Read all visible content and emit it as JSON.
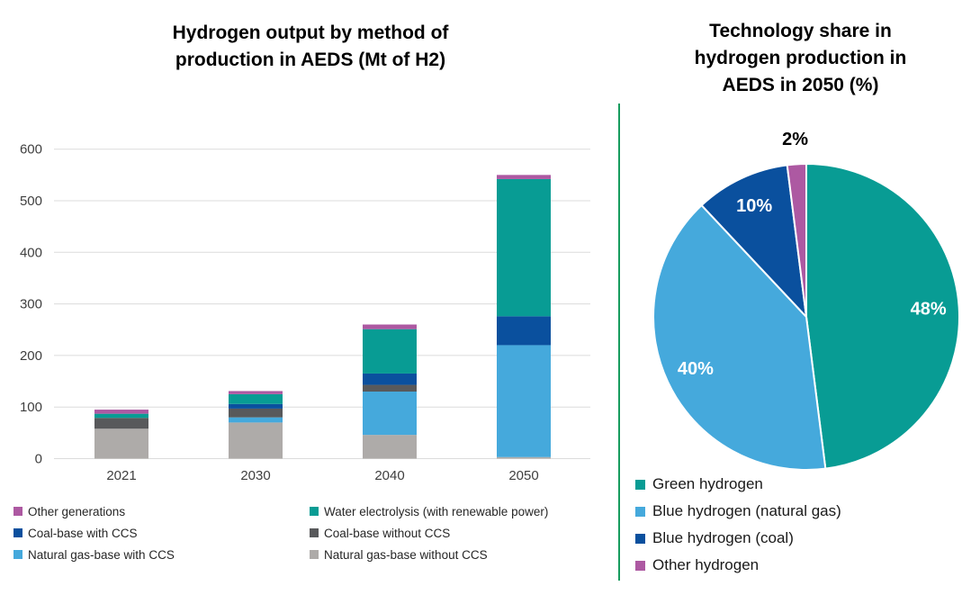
{
  "left_panel": {
    "title_lines": [
      "Hydrogen output by method of",
      "production in AEDS (Mt of H2)"
    ]
  },
  "right_panel": {
    "title_lines": [
      "Technology share in",
      "hydrogen production in",
      "AEDS in 2050 (%)"
    ]
  },
  "colors": {
    "teal": "#089c94",
    "light_blue": "#45a9dc",
    "navy": "#0a509e",
    "magenta": "#ad59a2",
    "dark_gray": "#58595b",
    "light_gray": "#aeaba9",
    "gridline": "#dcdcdc",
    "axis_text": "#3f3f3f",
    "divider_green": "#179c5e",
    "pie_label_light": "#ffffff",
    "pie_label_dark": "#000000"
  },
  "chart_data": [
    {
      "type": "bar",
      "stacked": true,
      "title": "Hydrogen output by method of production in AEDS (Mt of H2)",
      "categories": [
        "2021",
        "2030",
        "2040",
        "2050"
      ],
      "series": [
        {
          "name": "Natural gas-base without CCS",
          "color": "#aeaba9",
          "values": [
            58,
            70,
            46,
            3
          ]
        },
        {
          "name": "Natural gas-base with CCS",
          "color": "#45a9dc",
          "values": [
            0,
            10,
            84,
            217
          ]
        },
        {
          "name": "Coal-base without CCS",
          "color": "#58595b",
          "values": [
            21,
            17,
            13,
            0
          ]
        },
        {
          "name": "Coal-base with CCS",
          "color": "#0a509e",
          "values": [
            0,
            9,
            22,
            56
          ]
        },
        {
          "name": "Water electrolysis (with renewable power)",
          "color": "#089c94",
          "values": [
            8,
            19,
            86,
            266
          ]
        },
        {
          "name": "Other generations",
          "color": "#ad59a2",
          "values": [
            8,
            6,
            9,
            8
          ]
        }
      ],
      "totals": [
        95,
        131,
        260,
        550
      ],
      "ylabel": "",
      "xlabel": "",
      "ylim": [
        0,
        600
      ],
      "yticks": [
        0,
        100,
        200,
        300,
        400,
        500,
        600
      ],
      "grid": true,
      "legend_position": "bottom",
      "legend_columns": [
        [
          "Other generations",
          "Coal-base with CCS",
          "Natural gas-base with CCS"
        ],
        [
          "Water electrolysis (with renewable power)",
          "Coal-base without CCS",
          "Natural gas-base without CCS"
        ]
      ]
    },
    {
      "type": "pie",
      "title": "Technology share in hydrogen production in AEDS in 2050 (%)",
      "start_angle_deg": 0,
      "direction": "clockwise",
      "legend_position": "bottom",
      "slices": [
        {
          "label": "Green hydrogen",
          "value": 48,
          "color": "#089c94",
          "label_text": "48%",
          "label_color": "#ffffff",
          "label_outside": false
        },
        {
          "label": "Blue hydrogen (natural gas)",
          "value": 40,
          "color": "#45a9dc",
          "label_text": "40%",
          "label_color": "#ffffff",
          "label_outside": false
        },
        {
          "label": "Blue hydrogen (coal)",
          "value": 10,
          "color": "#0a509e",
          "label_text": "10%",
          "label_color": "#ffffff",
          "label_outside": false
        },
        {
          "label": "Other hydrogen",
          "value": 2,
          "color": "#ad59a2",
          "label_text": "2%",
          "label_color": "#000000",
          "label_outside": true
        }
      ]
    }
  ]
}
